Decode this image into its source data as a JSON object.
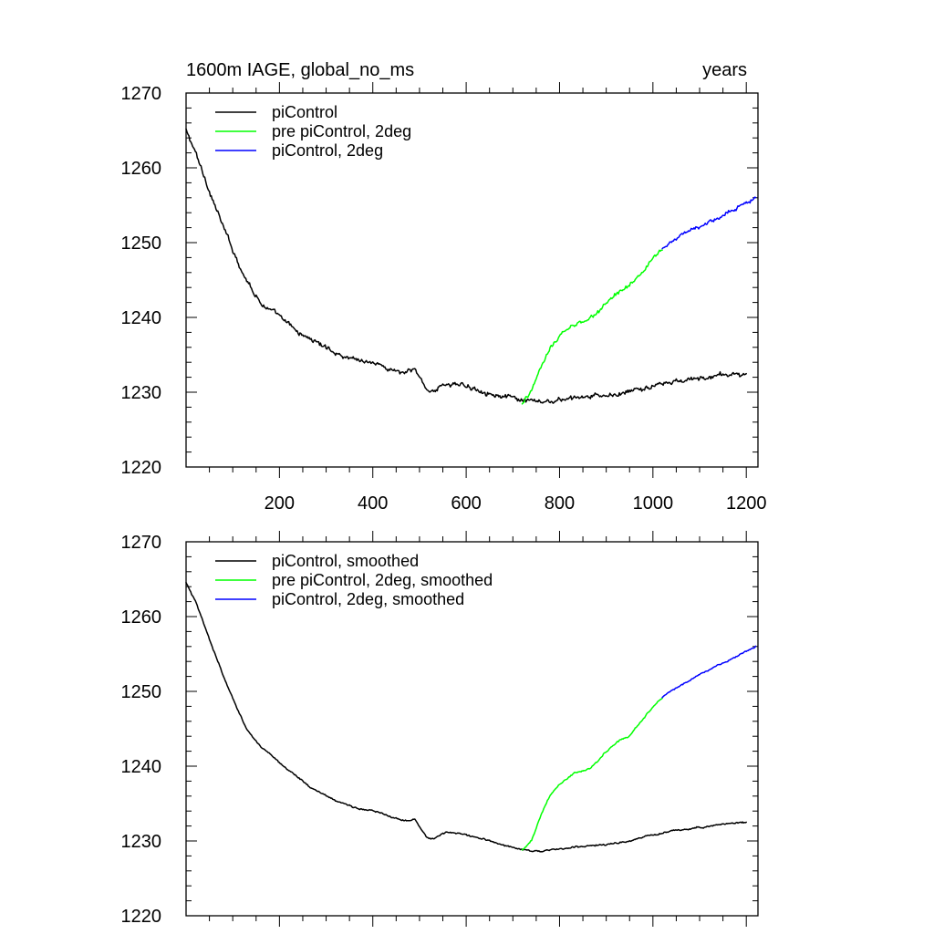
{
  "chart_data": [
    {
      "type": "line",
      "title": "1600m IAGE, global_no_ms",
      "units_label": "years",
      "ylim": [
        1220,
        1270
      ],
      "xlim": [
        0,
        1225
      ],
      "y_ticks": [
        1220,
        1230,
        1240,
        1250,
        1260,
        1270
      ],
      "x_ticks": [
        200,
        400,
        600,
        800,
        1000,
        1200
      ],
      "x_tick_labels": [
        "200",
        "400",
        "600",
        "800",
        "1000",
        "1200"
      ],
      "legend": [
        {
          "label": "piControl",
          "color": "#000000"
        },
        {
          "label": "pre piControl, 2deg",
          "color": "#00ff00"
        },
        {
          "label": "piControl, 2deg",
          "color": "#0000ff"
        }
      ],
      "series": [
        {
          "name": "piControl",
          "color": "#000000",
          "noise": 0.35,
          "x": [
            0,
            20,
            50,
            80,
            100,
            130,
            160,
            200,
            240,
            270,
            300,
            330,
            360,
            400,
            440,
            470,
            490,
            500,
            515,
            530,
            560,
            600,
            640,
            680,
            720,
            760,
            800,
            850,
            900,
            950,
            1000,
            1050,
            1100,
            1150,
            1200
          ],
          "y": [
            1265,
            1262,
            1257,
            1252,
            1249,
            1245,
            1242,
            1240,
            1238,
            1237,
            1236,
            1235,
            1234.5,
            1234,
            1233,
            1232.5,
            1233,
            1232,
            1230.5,
            1230.2,
            1231.2,
            1230.8,
            1230.2,
            1229.4,
            1228.8,
            1228.6,
            1228.9,
            1229.3,
            1229.5,
            1230,
            1230.8,
            1231.4,
            1231.8,
            1232.3,
            1232.5
          ]
        },
        {
          "name": "pre piControl, 2deg",
          "color": "#00ff00",
          "noise": 0.3,
          "x": [
            720,
            740,
            760,
            780,
            800,
            830,
            860,
            880,
            900,
            930,
            950,
            980,
            1000,
            1020
          ],
          "y": [
            1228.5,
            1230,
            1233.5,
            1236,
            1237.5,
            1239,
            1239.5,
            1240.5,
            1242,
            1243.5,
            1244,
            1246.5,
            1248,
            1249.2
          ]
        },
        {
          "name": "piControl, 2deg",
          "color": "#0000ff",
          "noise": 0.3,
          "x": [
            1020,
            1050,
            1080,
            1100,
            1130,
            1160,
            1190,
            1220
          ],
          "y": [
            1249.2,
            1250.5,
            1251.5,
            1252,
            1253,
            1254,
            1255,
            1256
          ]
        }
      ]
    },
    {
      "type": "line",
      "title": "",
      "ylim": [
        1220,
        1270
      ],
      "xlim": [
        0,
        1225
      ],
      "y_ticks": [
        1220,
        1230,
        1240,
        1250,
        1260,
        1270
      ],
      "x_ticks": [
        200,
        400,
        600,
        800,
        1000,
        1200
      ],
      "x_tick_labels": [],
      "legend": [
        {
          "label": "piControl, smoothed",
          "color": "#000000"
        },
        {
          "label": "pre piControl, 2deg, smoothed",
          "color": "#00ff00"
        },
        {
          "label": "piControl, 2deg, smoothed",
          "color": "#0000ff"
        }
      ],
      "series": [
        {
          "name": "piControl, smoothed",
          "color": "#000000",
          "noise": 0.12,
          "x": [
            0,
            20,
            50,
            80,
            100,
            130,
            160,
            200,
            240,
            270,
            300,
            330,
            360,
            400,
            440,
            470,
            490,
            500,
            515,
            530,
            560,
            600,
            640,
            680,
            720,
            760,
            800,
            850,
            900,
            950,
            1000,
            1050,
            1100,
            1150,
            1200
          ],
          "y": [
            1264.5,
            1262,
            1257,
            1252,
            1249,
            1245,
            1242.5,
            1240.5,
            1238.5,
            1237,
            1236,
            1235.2,
            1234.5,
            1234,
            1233.2,
            1232.8,
            1233,
            1232,
            1230.6,
            1230.3,
            1231.2,
            1230.8,
            1230.2,
            1229.4,
            1228.9,
            1228.6,
            1228.9,
            1229.3,
            1229.5,
            1230,
            1230.8,
            1231.4,
            1231.8,
            1232.3,
            1232.5
          ]
        },
        {
          "name": "pre piControl, 2deg, smoothed",
          "color": "#00ff00",
          "noise": 0.12,
          "x": [
            720,
            740,
            760,
            780,
            800,
            830,
            860,
            880,
            900,
            930,
            950,
            980,
            1000,
            1020
          ],
          "y": [
            1228.7,
            1230,
            1233.5,
            1236,
            1237.5,
            1239,
            1239.5,
            1240.5,
            1242,
            1243.5,
            1244,
            1246.5,
            1248,
            1249.2
          ]
        },
        {
          "name": "piControl, 2deg, smoothed",
          "color": "#0000ff",
          "noise": 0.12,
          "x": [
            1020,
            1050,
            1080,
            1100,
            1130,
            1160,
            1190,
            1220
          ],
          "y": [
            1249.2,
            1250.5,
            1251.5,
            1252.2,
            1253.2,
            1254,
            1255,
            1256
          ]
        }
      ]
    }
  ]
}
